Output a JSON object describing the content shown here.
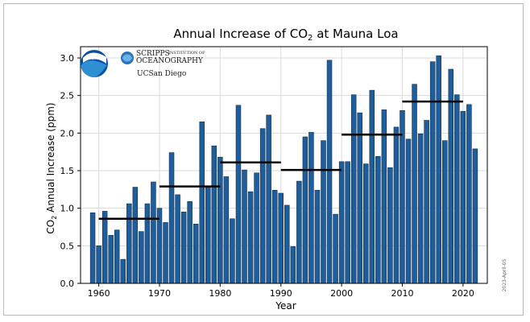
{
  "chart_data": {
    "type": "bar",
    "title_parts": [
      "Annual Increase of CO",
      "2",
      " at Mauna Loa"
    ],
    "xlabel": "Year",
    "ylabel_parts": [
      "CO",
      "2",
      " Annual Increase (ppm)"
    ],
    "x": [
      1959,
      1960,
      1961,
      1962,
      1963,
      1964,
      1965,
      1966,
      1967,
      1968,
      1969,
      1970,
      1971,
      1972,
      1973,
      1974,
      1975,
      1976,
      1977,
      1978,
      1979,
      1980,
      1981,
      1982,
      1983,
      1984,
      1985,
      1986,
      1987,
      1988,
      1989,
      1990,
      1991,
      1992,
      1993,
      1994,
      1995,
      1996,
      1997,
      1998,
      1999,
      2000,
      2001,
      2002,
      2003,
      2004,
      2005,
      2006,
      2007,
      2008,
      2009,
      2010,
      2011,
      2012,
      2013,
      2014,
      2015,
      2016,
      2017,
      2018,
      2019,
      2020,
      2021,
      2022
    ],
    "values": [
      0.94,
      0.5,
      0.96,
      0.64,
      0.71,
      0.32,
      1.06,
      1.28,
      0.69,
      1.06,
      1.35,
      1.0,
      0.81,
      1.74,
      1.18,
      0.95,
      1.09,
      0.79,
      2.15,
      1.29,
      1.83,
      1.68,
      1.42,
      0.86,
      2.37,
      1.51,
      1.22,
      1.47,
      2.06,
      2.24,
      1.24,
      1.2,
      1.04,
      0.49,
      1.36,
      1.95,
      2.01,
      1.24,
      1.9,
      2.97,
      0.92,
      1.62,
      1.62,
      2.51,
      2.27,
      1.59,
      2.57,
      1.69,
      2.31,
      1.54,
      2.08,
      2.3,
      1.92,
      2.65,
      1.99,
      2.17,
      2.95,
      3.03,
      1.9,
      2.85,
      2.51,
      2.29,
      2.38,
      1.79
    ],
    "decadal_means": [
      {
        "start": 1960,
        "end": 1970,
        "value": 0.86
      },
      {
        "start": 1970,
        "end": 1980,
        "value": 1.29
      },
      {
        "start": 1980,
        "end": 1990,
        "value": 1.61
      },
      {
        "start": 1990,
        "end": 2000,
        "value": 1.51
      },
      {
        "start": 2000,
        "end": 2010,
        "value": 1.98
      },
      {
        "start": 2010,
        "end": 2020,
        "value": 2.42
      }
    ],
    "xlim": [
      1957,
      2024
    ],
    "ylim": [
      0,
      3.15
    ],
    "xticks": [
      1960,
      1970,
      1980,
      1990,
      2000,
      2010,
      2020
    ],
    "yticks": [
      "0.0",
      "0.5",
      "1.0",
      "1.5",
      "2.0",
      "2.5",
      "3.0"
    ],
    "grid": true,
    "colors": {
      "bar_fill": "#1f5e9a",
      "bar_edge": "#0f2f52",
      "mean_line": "#000000",
      "grid": "#d9d9d9",
      "noaa_blue": "#0b4ea2",
      "noaa_light": "#2e8fd2",
      "scripps_blue": "#2a73b8"
    },
    "date_stamp": "2023-April-05",
    "logos": {
      "noaa": "NOAA",
      "scripps_top": "SCRIPPS",
      "scripps_small": "INSTITUTION OF",
      "scripps_bottom": "OCEANOGRAPHY",
      "ucsd": "UCSan Diego"
    }
  }
}
